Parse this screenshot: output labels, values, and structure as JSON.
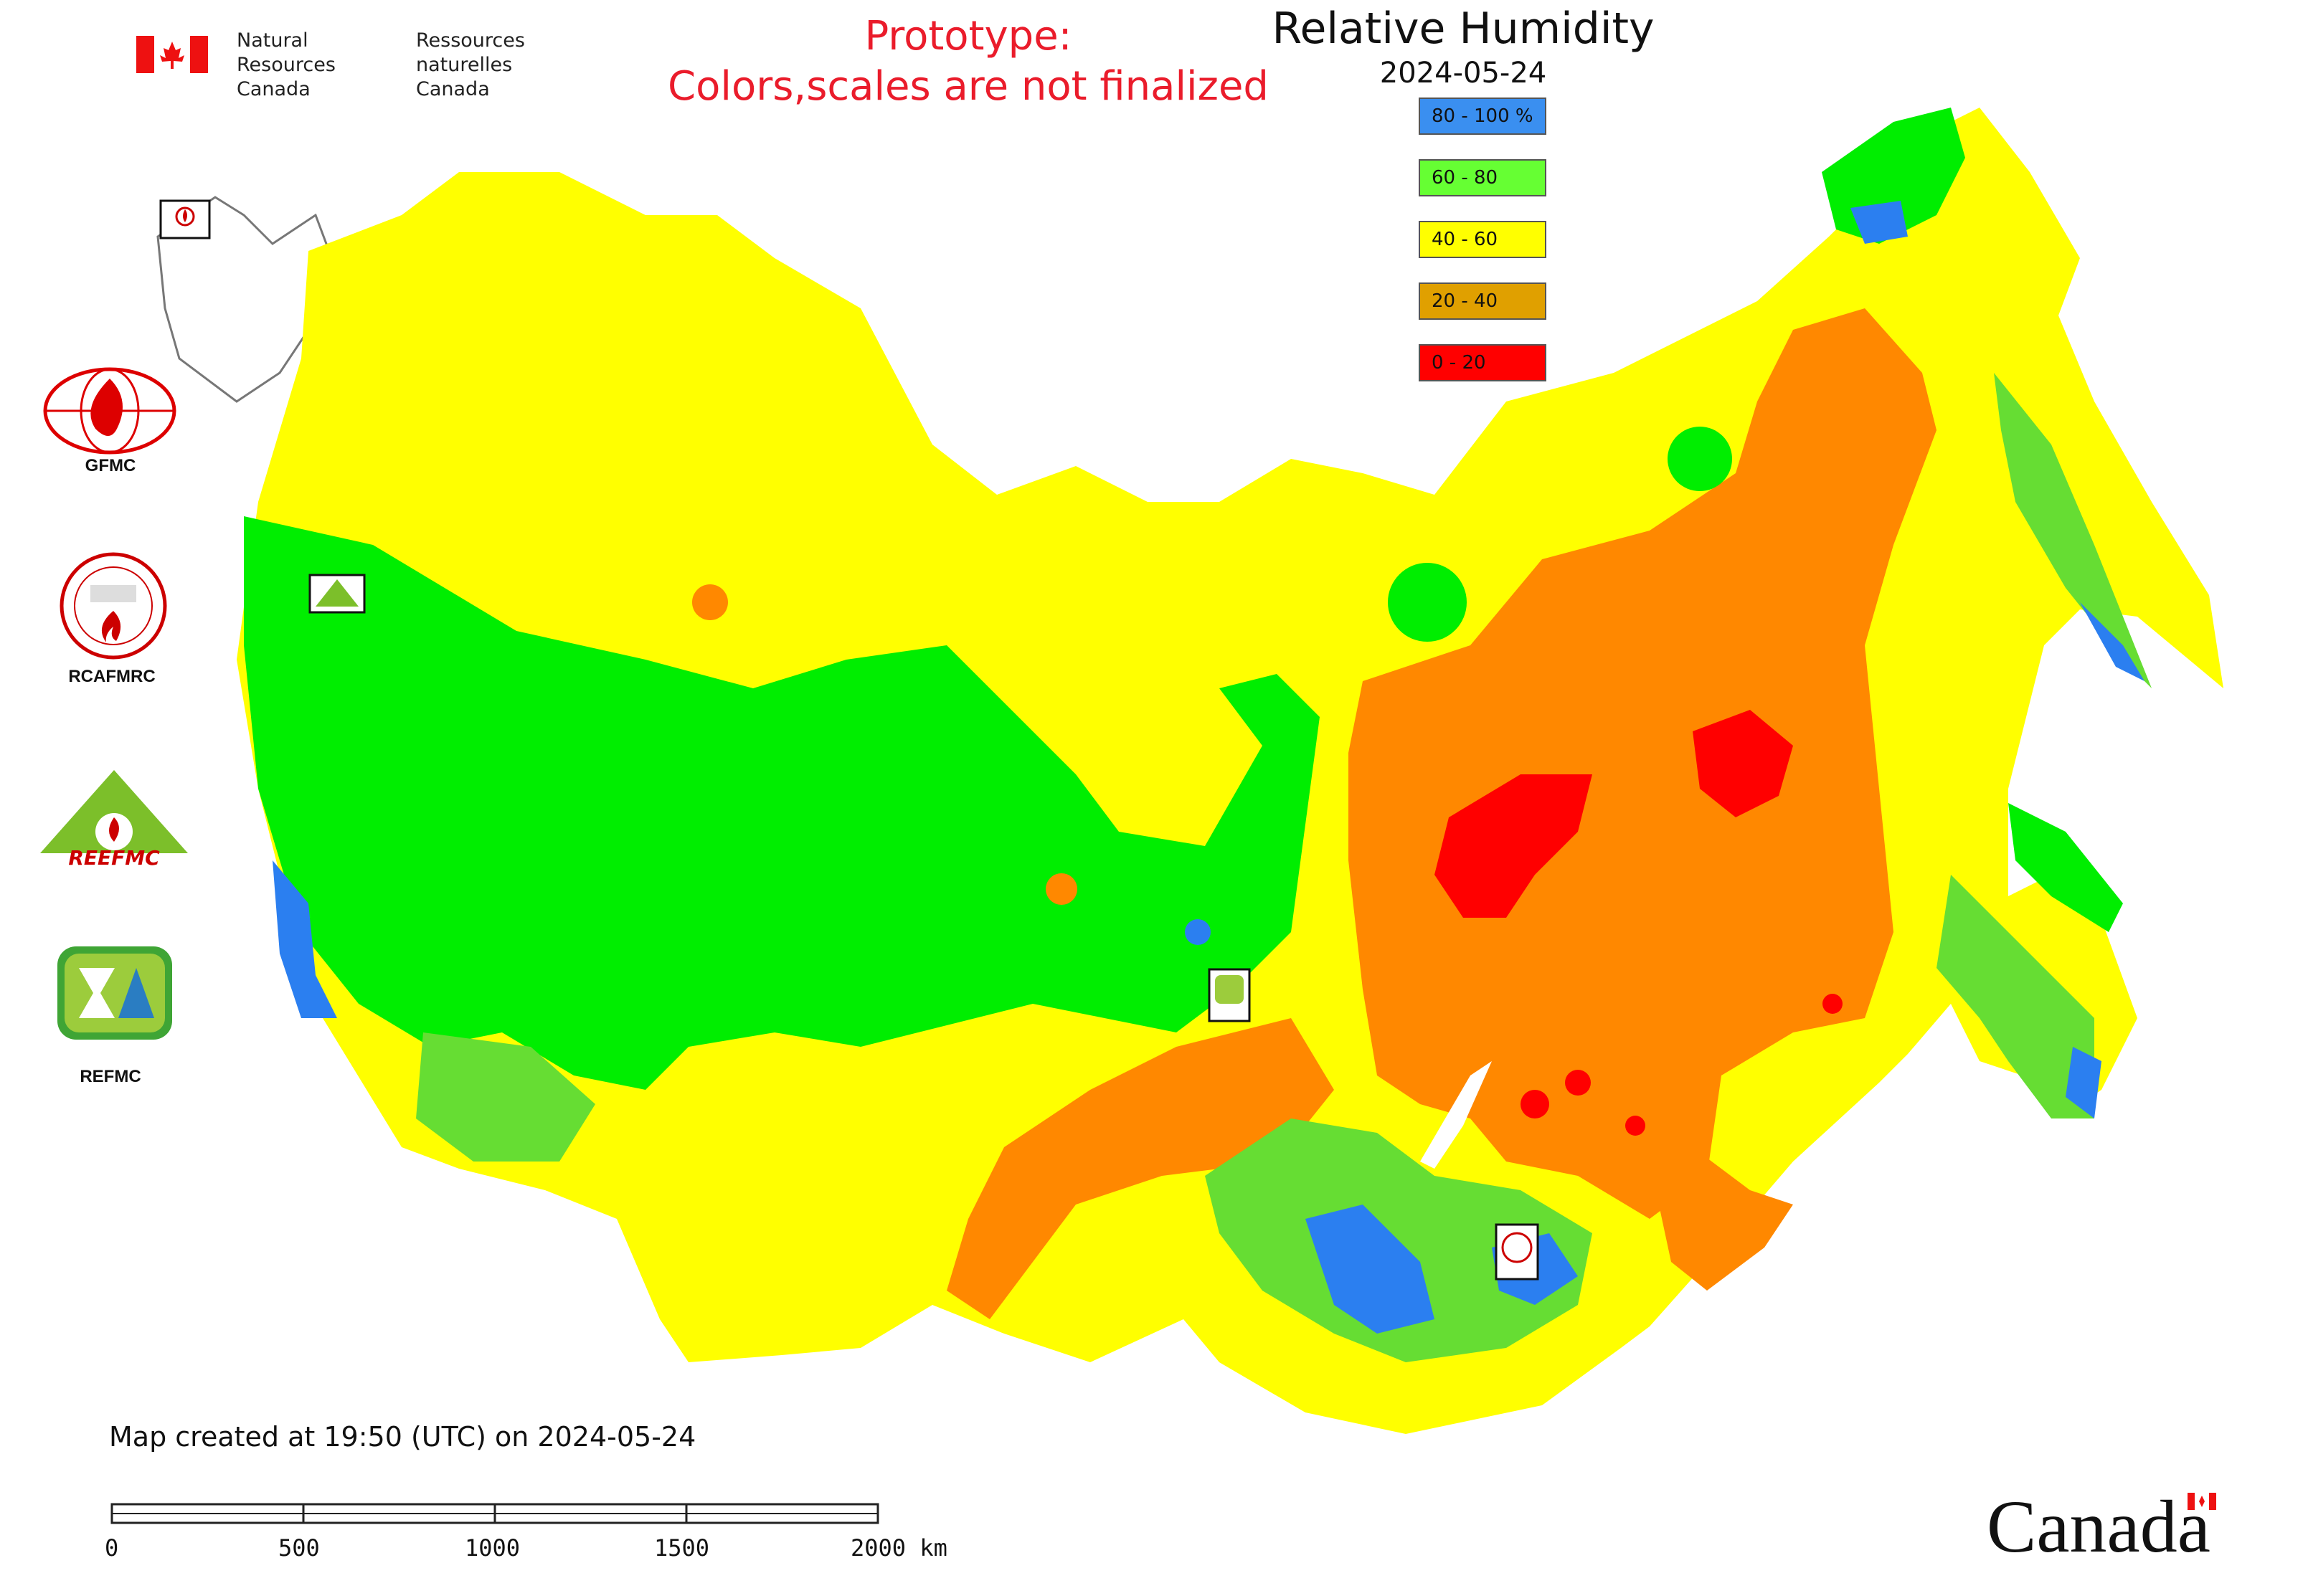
{
  "header": {
    "agency_en_line1": "Natural Resources",
    "agency_en_line2": "Canada",
    "agency_fr_line1": "Ressources naturelles",
    "agency_fr_line2": "Canada",
    "prototype_line1": "Prototype:",
    "prototype_line2": "Colors,scales are not finalized"
  },
  "map": {
    "title": "Relative Humidity",
    "date": "2024-05-24",
    "legend": [
      {
        "label": "80 - 100 %",
        "color": "#3a8ff0"
      },
      {
        "label": "60 - 80",
        "color": "#66ff33"
      },
      {
        "label": "40 - 60",
        "color": "#ffff00"
      },
      {
        "label": "20 - 40",
        "color": "#e0a000"
      },
      {
        "label": "0 - 20",
        "color": "#ff0000"
      }
    ],
    "fill_colors": {
      "very_humid": "#2b7ff0",
      "humid": "#00ee00",
      "humid_mid": "#66dd33",
      "moderate": "#ffff00",
      "dry": "#ff8800",
      "very_dry": "#ff0000",
      "water": "#ffffff",
      "borders": "#333333"
    }
  },
  "logos": {
    "gfmc": "GFMC",
    "rcafmrc": "RCAFMRC",
    "rcafmrc_badge": "RCAFMRC",
    "reefmc_badge": "REEFMC",
    "refmc": "REFMC"
  },
  "footer": {
    "created": "Map created at 19:50 (UTC) on 2024-05-24",
    "scale_ticks": [
      "0",
      "500",
      "1000",
      "1500",
      "2000 km"
    ],
    "wordmark": "Canada"
  }
}
